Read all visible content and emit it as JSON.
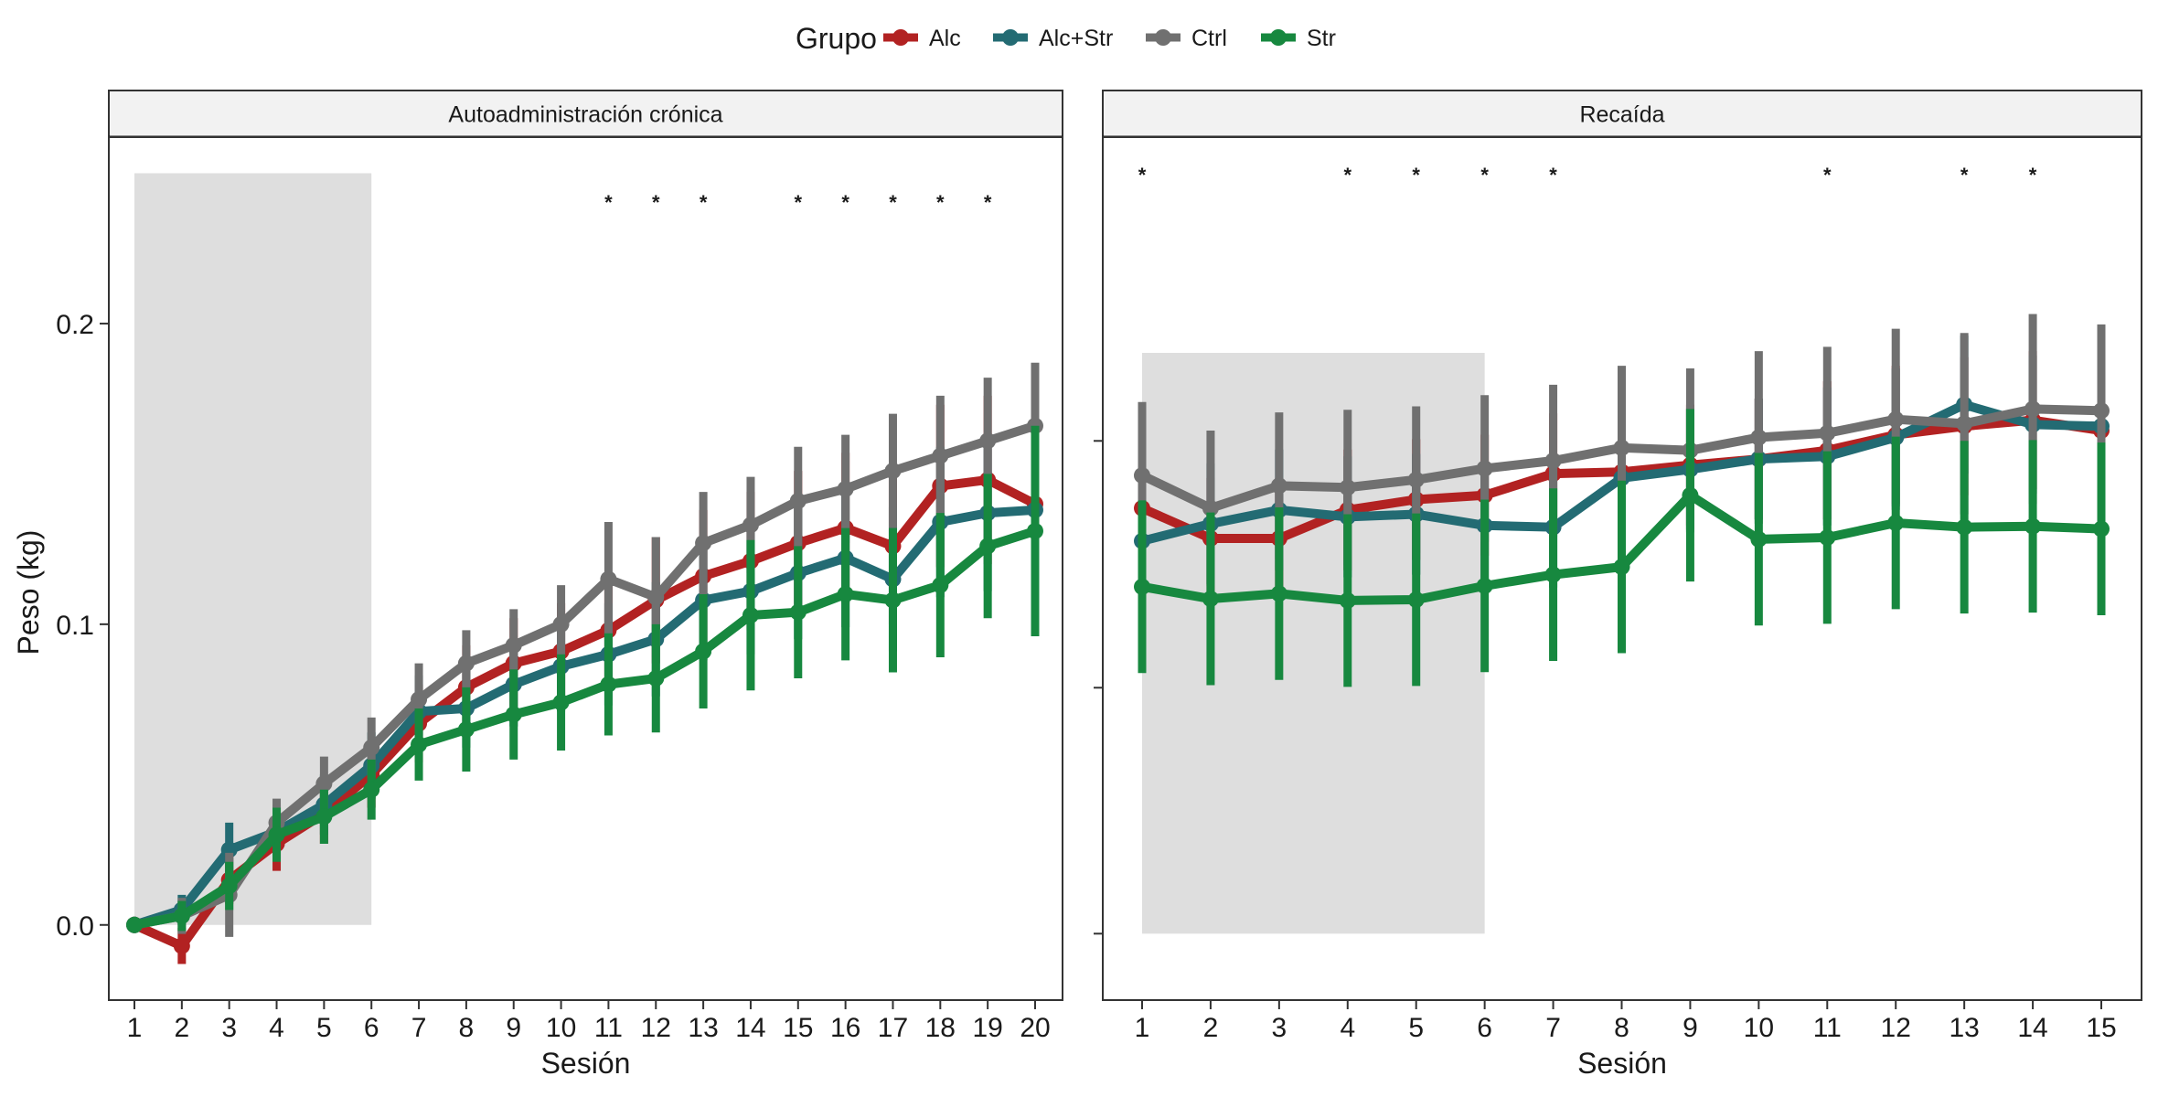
{
  "chart_data": {
    "type": "line",
    "ylabel": "Peso (kg)",
    "legend": {
      "title": "Grupo",
      "position": "top",
      "entries": [
        {
          "name": "Alc",
          "color": "#b22222"
        },
        {
          "name": "Alc+Str",
          "color": "#236b73"
        },
        {
          "name": "Ctrl",
          "color": "#707070"
        },
        {
          "name": "Str",
          "color": "#17883f"
        }
      ]
    },
    "panels": [
      {
        "title": "Autoadministración crónica",
        "xlabel": "Sesión",
        "x": [
          1,
          2,
          3,
          4,
          5,
          6,
          7,
          8,
          9,
          10,
          11,
          12,
          13,
          14,
          15,
          16,
          17,
          18,
          19,
          20
        ],
        "ylim": [
          -0.025,
          0.262
        ],
        "yticks": [
          0.0,
          0.1,
          0.2
        ],
        "ytick_labels": [
          "0.0",
          "0.1",
          "0.2"
        ],
        "shaded_sessions": [
          1,
          6
        ],
        "shaded_y": [
          0.0,
          0.25
        ],
        "significant_sessions": [
          11,
          12,
          13,
          15,
          16,
          17,
          18,
          19
        ],
        "series": [
          {
            "name": "Alc",
            "color": "#b22222",
            "values": [
              0.0,
              -0.007,
              0.015,
              0.027,
              0.037,
              0.05,
              0.067,
              0.079,
              0.087,
              0.091,
              0.098,
              0.108,
              0.116,
              0.121,
              0.127,
              0.132,
              0.126,
              0.146,
              0.148,
              0.14
            ],
            "errors": [
              0.0,
              0.006,
              0.008,
              0.009,
              0.01,
              0.011,
              0.013,
              0.014,
              0.015,
              0.016,
              0.018,
              0.021,
              0.022,
              0.023,
              0.024,
              0.025,
              0.026,
              0.027,
              0.028,
              0.03
            ]
          },
          {
            "name": "Alc+Str",
            "color": "#236b73",
            "values": [
              0.0,
              0.005,
              0.025,
              0.031,
              0.04,
              0.053,
              0.071,
              0.072,
              0.08,
              0.086,
              0.09,
              0.095,
              0.108,
              0.111,
              0.117,
              0.122,
              0.115,
              0.134,
              0.137,
              0.138
            ],
            "errors": [
              0.0,
              0.005,
              0.009,
              0.009,
              0.01,
              0.011,
              0.012,
              0.013,
              0.014,
              0.015,
              0.017,
              0.019,
              0.02,
              0.021,
              0.022,
              0.023,
              0.024,
              0.025,
              0.026,
              0.027
            ]
          },
          {
            "name": "Ctrl",
            "color": "#707070",
            "values": [
              0.0,
              0.003,
              0.01,
              0.034,
              0.047,
              0.059,
              0.075,
              0.087,
              0.093,
              0.1,
              0.115,
              0.109,
              0.127,
              0.133,
              0.141,
              0.145,
              0.151,
              0.156,
              0.161,
              0.166
            ],
            "errors": [
              0.0,
              0.006,
              0.014,
              0.008,
              0.009,
              0.01,
              0.012,
              0.011,
              0.012,
              0.013,
              0.019,
              0.02,
              0.017,
              0.016,
              0.018,
              0.018,
              0.019,
              0.02,
              0.021,
              0.021
            ]
          },
          {
            "name": "Str",
            "color": "#17883f",
            "values": [
              0.0,
              0.003,
              0.013,
              0.03,
              0.036,
              0.045,
              0.06,
              0.065,
              0.07,
              0.074,
              0.08,
              0.082,
              0.091,
              0.103,
              0.104,
              0.11,
              0.108,
              0.113,
              0.126,
              0.131
            ],
            "errors": [
              0.0,
              0.005,
              0.008,
              0.009,
              0.009,
              0.01,
              0.012,
              0.014,
              0.015,
              0.016,
              0.017,
              0.018,
              0.019,
              0.025,
              0.022,
              0.022,
              0.024,
              0.024,
              0.024,
              0.035
            ]
          }
        ]
      },
      {
        "title": "Recaída",
        "xlabel": "Sesión",
        "x": [
          1,
          2,
          3,
          4,
          5,
          6,
          7,
          8,
          9,
          10,
          11,
          12,
          13,
          14,
          15
        ],
        "ylim": [
          0.0,
          1.0
        ],
        "yticks": [
          0.077,
          0.362,
          0.648
        ],
        "ytick_labels": [
          "",
          "",
          ""
        ],
        "shaded_sessions": [
          1,
          6
        ],
        "shaded_y": [
          0.077,
          0.75
        ],
        "significant_sessions": [
          1,
          4,
          5,
          6,
          7,
          11,
          13,
          14
        ],
        "series": [
          {
            "name": "Alc",
            "color": "#b22222",
            "values": [
              0.57,
              0.535,
              0.535,
              0.568,
              0.58,
              0.585,
              0.61,
              0.612,
              0.62,
              0.627,
              0.637,
              0.655,
              0.665,
              0.672,
              0.66
            ],
            "errors": [
              0.07,
              0.07,
              0.07,
              0.07,
              0.07,
              0.07,
              0.07,
              0.07,
              0.07,
              0.07,
              0.08,
              0.08,
              0.08,
              0.08,
              0.08
            ]
          },
          {
            "name": "Alc+Str",
            "color": "#236b73",
            "values": [
              0.532,
              0.552,
              0.568,
              0.56,
              0.563,
              0.55,
              0.548,
              0.605,
              0.615,
              0.627,
              0.63,
              0.652,
              0.69,
              0.667,
              0.665
            ],
            "errors": [
              0.07,
              0.07,
              0.07,
              0.07,
              0.07,
              0.07,
              0.07,
              0.07,
              0.07,
              0.07,
              0.08,
              0.08,
              0.08,
              0.08,
              0.08
            ]
          },
          {
            "name": "Ctrl",
            "color": "#707070",
            "values": [
              0.608,
              0.57,
              0.596,
              0.594,
              0.603,
              0.616,
              0.625,
              0.64,
              0.637,
              0.652,
              0.657,
              0.673,
              0.668,
              0.685,
              0.683
            ],
            "errors": [
              0.085,
              0.09,
              0.085,
              0.09,
              0.085,
              0.085,
              0.088,
              0.095,
              0.095,
              0.1,
              0.1,
              0.105,
              0.105,
              0.11,
              0.1
            ]
          },
          {
            "name": "Str",
            "color": "#17883f",
            "values": [
              0.479,
              0.465,
              0.471,
              0.463,
              0.464,
              0.48,
              0.493,
              0.502,
              0.585,
              0.534,
              0.536,
              0.553,
              0.548,
              0.549,
              0.546
            ],
            "errors": [
              0.1,
              0.1,
              0.1,
              0.1,
              0.1,
              0.1,
              0.1,
              0.1,
              0.1,
              0.1,
              0.1,
              0.1,
              0.1,
              0.1,
              0.1
            ]
          }
        ]
      }
    ]
  }
}
